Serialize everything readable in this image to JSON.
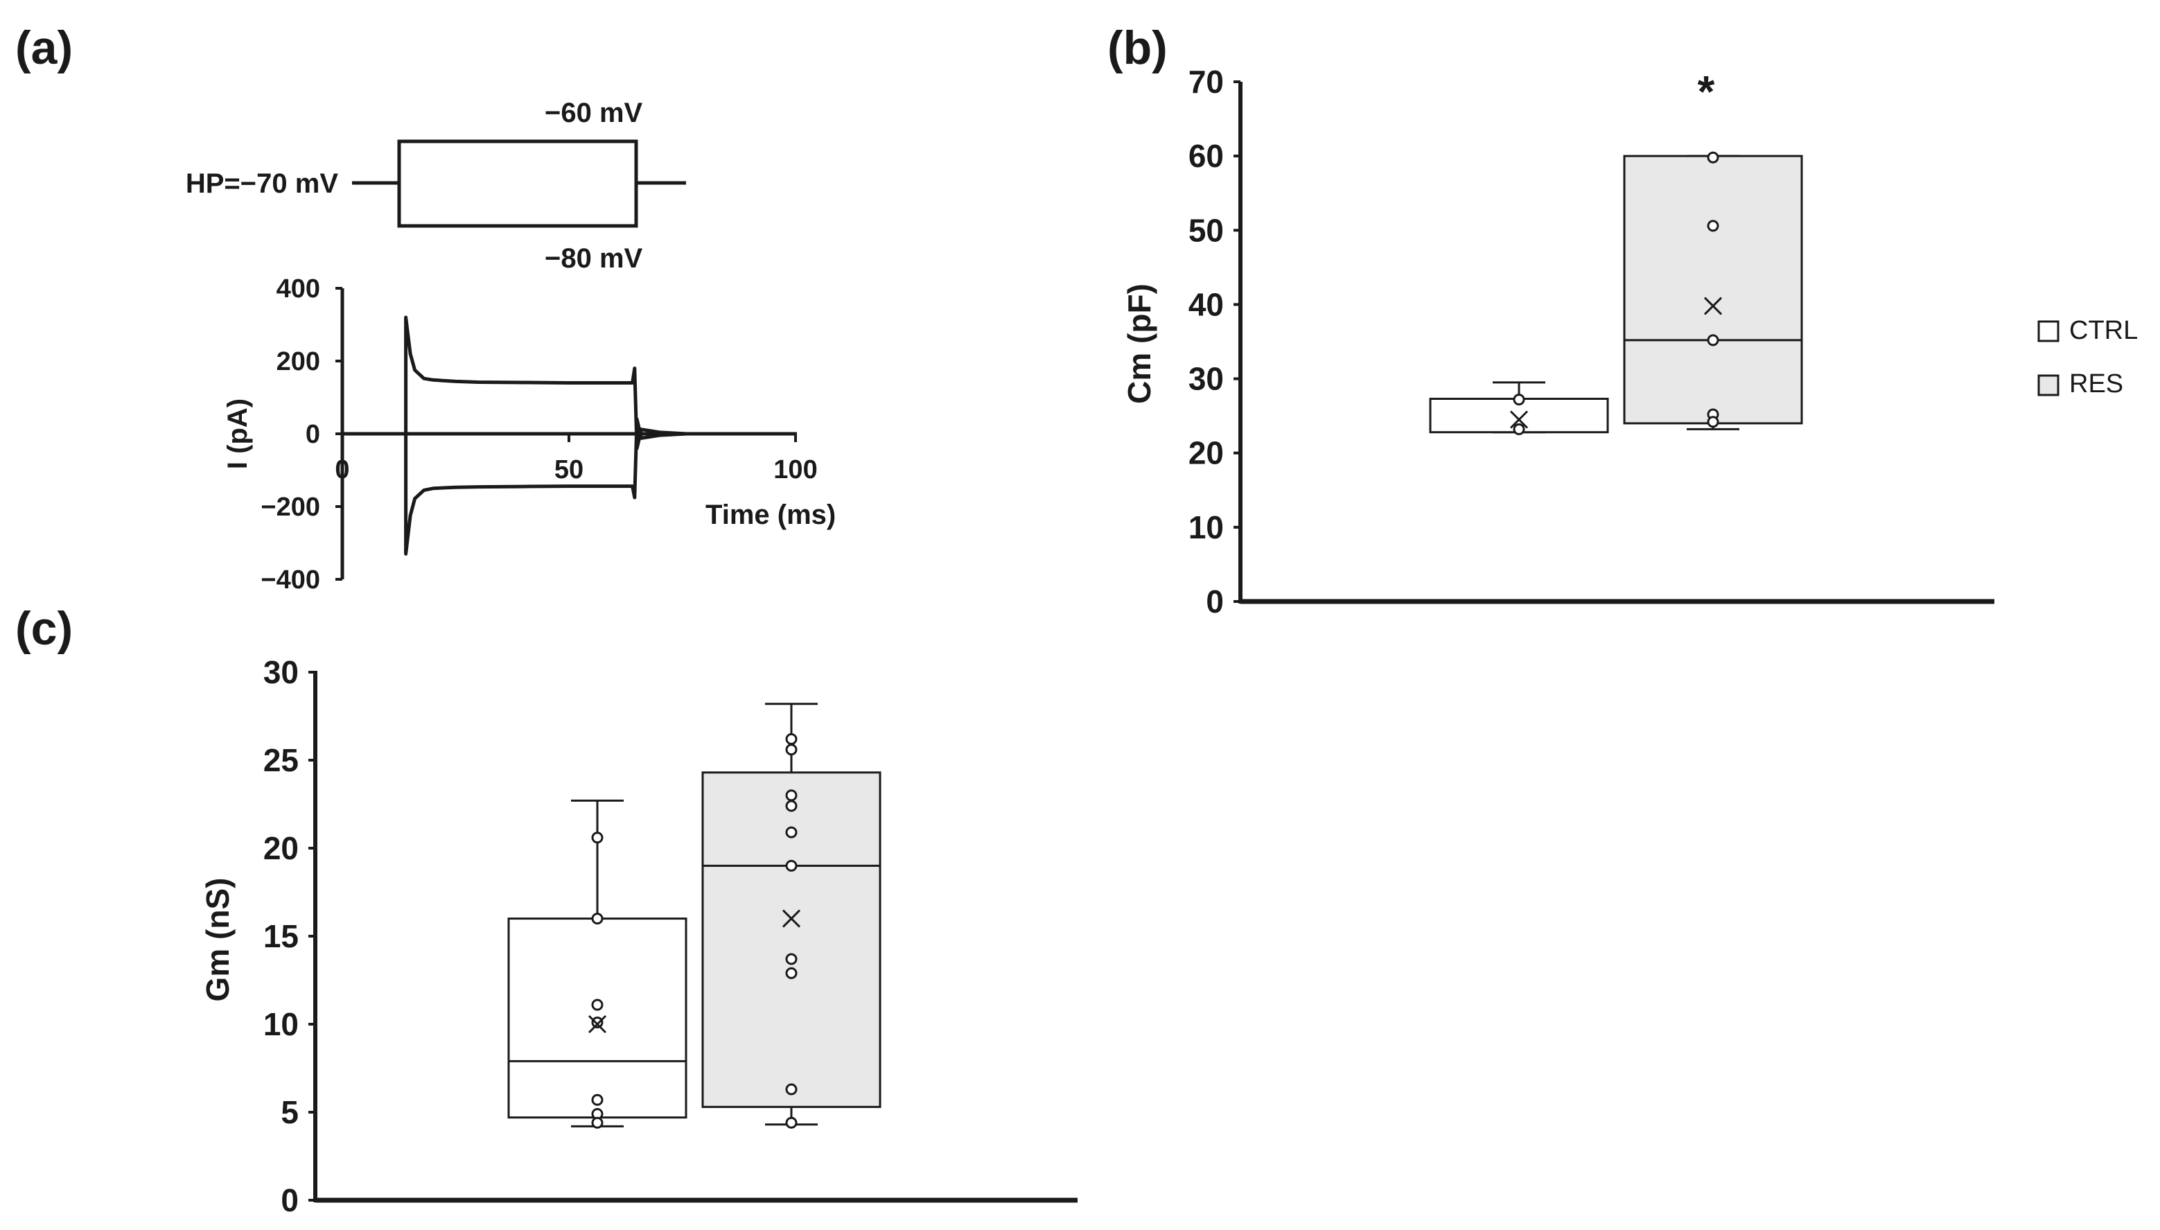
{
  "colors": {
    "ctrl_fill": "#ffffff",
    "res_fill": "#e8e8e8",
    "ink": "#1a1a1a"
  },
  "legend": [
    {
      "label": "CTRL",
      "color": "#ffffff"
    },
    {
      "label": "RES",
      "color": "#e8e8e8"
    }
  ],
  "chart_data": [
    {
      "panel": "(a)",
      "type": "line",
      "protocol": {
        "hp_label": "HP=−70 mV",
        "upper_label": "−60 mV",
        "lower_label": "−80 mV"
      },
      "xlabel": "Time (ms)",
      "ylabel": "I (pA)",
      "xticks": [
        "0",
        "50",
        "100"
      ],
      "yticks": [
        "400",
        "200",
        "0",
        "−200",
        "−400"
      ],
      "xlim": [
        0,
        100
      ],
      "ylim": [
        -400,
        400
      ],
      "step_window_ms": [
        14,
        64
      ],
      "series": [
        {
          "x": [
            0,
            14,
            14,
            15,
            16,
            18,
            20,
            25,
            30,
            40,
            50,
            60,
            64,
            64.5,
            65,
            66,
            70,
            76
          ],
          "y": [
            0,
            0,
            320,
            220,
            175,
            152,
            148,
            144,
            142,
            141,
            140,
            140,
            140,
            180,
            -40,
            12,
            4,
            0
          ]
        },
        {
          "x": [
            0,
            14,
            14,
            15,
            16,
            18,
            20,
            25,
            30,
            40,
            50,
            60,
            64,
            64.5,
            65,
            66,
            70,
            76
          ],
          "y": [
            0,
            0,
            -330,
            -225,
            -178,
            -155,
            -150,
            -147,
            -146,
            -145,
            -144,
            -144,
            -144,
            -175,
            40,
            -12,
            -4,
            0
          ]
        }
      ]
    },
    {
      "panel": "(b)",
      "type": "box",
      "ylabel": "Cm (pF)",
      "ylim": [
        0,
        70
      ],
      "yticks": [
        "70",
        "60",
        "50",
        "40",
        "30",
        "20",
        "10",
        "0"
      ],
      "significance": "*",
      "groups": [
        {
          "name": "CTRL",
          "q1": 22.8,
          "median": 27.3,
          "q3": 27.3,
          "whisker_low": 22.8,
          "whisker_high": 29.5,
          "mean": 24.5,
          "points": [
            27.2,
            23.2
          ]
        },
        {
          "name": "RES",
          "q1": 24,
          "median": 35.2,
          "q3": 60,
          "whisker_low": 23.2,
          "whisker_high": 60,
          "mean": 39.8,
          "points": [
            59.8,
            50.6,
            35.2,
            25.2,
            24.2
          ]
        }
      ]
    },
    {
      "panel": "(c)",
      "type": "box",
      "ylabel": "Gm (nS)",
      "ylim": [
        0,
        30
      ],
      "yticks": [
        "30",
        "25",
        "20",
        "15",
        "10",
        "5",
        "0"
      ],
      "groups": [
        {
          "name": "CTRL",
          "q1": 4.7,
          "median": 7.9,
          "q3": 16,
          "whisker_low": 4.2,
          "whisker_high": 22.7,
          "mean": 10,
          "points": [
            20.6,
            16,
            11.1,
            10.1,
            5.7,
            4.9,
            4.4
          ]
        },
        {
          "name": "RES",
          "q1": 5.3,
          "median": 19,
          "q3": 24.3,
          "whisker_low": 4.3,
          "whisker_high": 28.2,
          "mean": 16,
          "points": [
            26.2,
            25.6,
            23,
            22.4,
            20.9,
            19,
            13.7,
            12.9,
            6.3,
            4.4
          ]
        }
      ]
    }
  ]
}
